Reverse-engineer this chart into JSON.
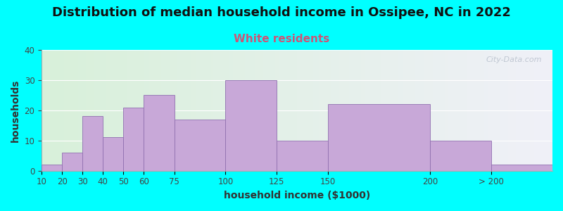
{
  "title": "Distribution of median household income in Ossipee, NC in 2022",
  "subtitle": "White residents",
  "xlabel": "household income ($1000)",
  "ylabel": "households",
  "background_color": "#00FFFF",
  "bar_color": "#c8a8d8",
  "bar_edge_color": "#9070b0",
  "subtitle_color": "#cc5577",
  "tick_color": "#444444",
  "axis_label_color": "#333333",
  "watermark_text": "City-Data.com",
  "watermark_color": "#b8c0cc",
  "bin_edges": [
    10,
    20,
    30,
    40,
    50,
    60,
    75,
    100,
    125,
    150,
    200,
    230,
    260
  ],
  "bin_labels": [
    "10",
    "20",
    "30",
    "40",
    "50",
    "60",
    "75",
    "100",
    "125",
    "150",
    "200",
    "> 200"
  ],
  "values": [
    2,
    6,
    18,
    11,
    21,
    25,
    17,
    30,
    10,
    22,
    10,
    2
  ],
  "ylim": [
    0,
    40
  ],
  "yticks": [
    0,
    10,
    20,
    30,
    40
  ],
  "title_fontsize": 13,
  "subtitle_fontsize": 11,
  "axis_label_fontsize": 10,
  "tick_fontsize": 8.5
}
